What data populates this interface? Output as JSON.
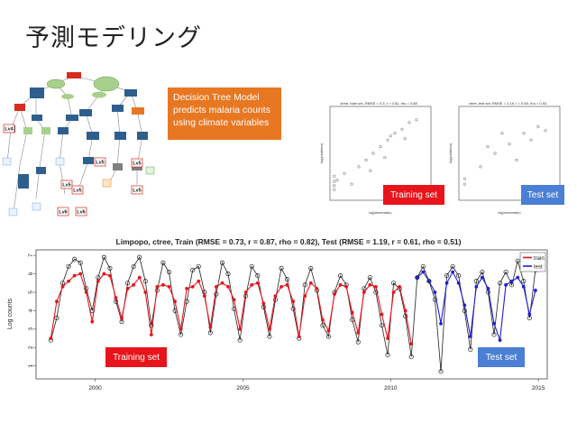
{
  "slide": {
    "title": "予測モデリング",
    "callout_lines": [
      "Decision Tree Model",
      "predicts malaria counts",
      "using climate variables"
    ],
    "scatter_labels": {
      "train_tag": "Training set",
      "test_tag": "Test set"
    },
    "bottom_labels": {
      "train_tag": "Training set",
      "test_tag": "Test set"
    },
    "colors": {
      "callout": "#e87722",
      "train": "#e8141b",
      "test": "#1f1fd6",
      "tag_red": "#e8141b",
      "tag_blue": "#4a7fd3"
    }
  },
  "tree": {
    "nodes": [
      {
        "label": "Lv4",
        "color": "#f2c6c6"
      },
      {
        "label": "Lv5",
        "color": "#f2c6c6"
      },
      {
        "label": "Lv5",
        "color": "#f2c6c6"
      },
      {
        "label": "Lv5",
        "color": "#f2c6c6"
      },
      {
        "label": "Lv6",
        "color": "#f2c6c6"
      },
      {
        "label": "Lv6",
        "color": "#f2c6c6"
      },
      {
        "label": "Lv5",
        "color": "#f2c6c6"
      },
      {
        "label": "Lv5",
        "color": "#f2c6c6"
      }
    ]
  },
  "chart_data": [
    {
      "type": "scatter",
      "title": "ctree, train set, RMSE = 0.3, r = 0.82, rho = 0.88",
      "xlabel": "log(observation)",
      "ylabel": "log(prediction)",
      "xlim": [
        0,
        7
      ],
      "ylim": [
        0,
        7
      ],
      "series": [
        {
          "values": [
            [
              0.5,
              1.5
            ],
            [
              1,
              2
            ],
            [
              1.5,
              1.2
            ],
            [
              2,
              2.5
            ],
            [
              2.5,
              3
            ],
            [
              3,
              3.5
            ],
            [
              3.5,
              4
            ],
            [
              4,
              4.5
            ],
            [
              4.5,
              5
            ],
            [
              5,
              5.3
            ],
            [
              5.5,
              5.8
            ],
            [
              6,
              6
            ],
            [
              0.3,
              0.8
            ],
            [
              0.3,
              1.1
            ],
            [
              0.3,
              1.4
            ],
            [
              0.3,
              1.8
            ],
            [
              3.8,
              3.2
            ],
            [
              4.2,
              4.8
            ],
            [
              5.2,
              4.6
            ],
            [
              2.8,
              2.2
            ]
          ]
        }
      ]
    },
    {
      "type": "scatter",
      "title": "ctree, test set, RMSE = 1.19, r = 0.65, rho = 0.53",
      "xlabel": "log(observation)",
      "ylabel": "log(prediction)",
      "xlim": [
        0,
        7
      ],
      "ylim": [
        0,
        7
      ],
      "series": [
        {
          "values": [
            [
              0.4,
              1.2
            ],
            [
              0.4,
              1.6
            ],
            [
              1.5,
              2.5
            ],
            [
              2.5,
              3.5
            ],
            [
              3.5,
              4.2
            ],
            [
              4.5,
              5
            ],
            [
              5.5,
              5.5
            ],
            [
              6,
              5.2
            ],
            [
              3,
              5
            ],
            [
              2,
              4
            ],
            [
              4,
              3
            ],
            [
              5,
              4.5
            ]
          ]
        }
      ]
    },
    {
      "type": "line",
      "title": "Limpopo, ctree, Train (RMSE = 0.73, r = 0.87, rho = 0.82), Test (RMSE = 1.19, r = 0.61, rho = 0.51)",
      "xlabel": "",
      "ylabel": "Log counts",
      "xlim": [
        1998,
        2015.3
      ],
      "ylim": [
        0.3,
        7.3
      ],
      "x_ticks": [
        "2000",
        "2005",
        "2010",
        "2015"
      ],
      "y_ticks": [
        "1",
        "2",
        "3",
        "4",
        "5",
        "6",
        "7"
      ],
      "legend": {
        "placement": "top-right",
        "entries": [
          "train",
          "test"
        ]
      },
      "series": [
        {
          "name": "observed",
          "color": "#222222",
          "values": [
            [
              1998.5,
              2.4
            ],
            [
              1998.7,
              3.6
            ],
            [
              1998.9,
              5.5
            ],
            [
              1999.1,
              6.4
            ],
            [
              1999.3,
              6.8
            ],
            [
              1999.5,
              6.6
            ],
            [
              1999.7,
              5.2
            ],
            [
              1999.9,
              4.0
            ],
            [
              2000.1,
              5.8
            ],
            [
              2000.3,
              6.9
            ],
            [
              2000.5,
              6.3
            ],
            [
              2000.7,
              4.5
            ],
            [
              2000.9,
              3.4
            ],
            [
              2001.1,
              5.5
            ],
            [
              2001.3,
              6.4
            ],
            [
              2001.5,
              6.9
            ],
            [
              2001.7,
              5.6
            ],
            [
              2001.9,
              3.2
            ],
            [
              2002.1,
              5.1
            ],
            [
              2002.3,
              6.6
            ],
            [
              2002.5,
              6.1
            ],
            [
              2002.7,
              4.0
            ],
            [
              2002.9,
              2.7
            ],
            [
              2003.1,
              4.5
            ],
            [
              2003.3,
              6.2
            ],
            [
              2003.5,
              6.4
            ],
            [
              2003.7,
              5.0
            ],
            [
              2003.9,
              2.8
            ],
            [
              2004.1,
              4.9
            ],
            [
              2004.3,
              6.6
            ],
            [
              2004.5,
              6.0
            ],
            [
              2004.7,
              4.1
            ],
            [
              2004.9,
              2.4
            ],
            [
              2005.1,
              4.8
            ],
            [
              2005.3,
              6.4
            ],
            [
              2005.5,
              5.9
            ],
            [
              2005.7,
              4.2
            ],
            [
              2005.9,
              2.6
            ],
            [
              2006.1,
              4.6
            ],
            [
              2006.3,
              6.3
            ],
            [
              2006.5,
              5.7
            ],
            [
              2006.7,
              4.1
            ],
            [
              2006.9,
              2.5
            ],
            [
              2007.1,
              5.4
            ],
            [
              2007.3,
              6.3
            ],
            [
              2007.5,
              5.1
            ],
            [
              2007.7,
              3.2
            ],
            [
              2007.9,
              2.6
            ],
            [
              2008.1,
              5.0
            ],
            [
              2008.3,
              5.9
            ],
            [
              2008.5,
              5.4
            ],
            [
              2008.7,
              3.5
            ],
            [
              2008.9,
              2.3
            ],
            [
              2009.1,
              5.2
            ],
            [
              2009.3,
              5.8
            ],
            [
              2009.5,
              5.0
            ],
            [
              2009.7,
              3.2
            ],
            [
              2009.9,
              1.6
            ],
            [
              2010.1,
              5.5
            ],
            [
              2010.3,
              5.2
            ],
            [
              2010.5,
              3.7
            ],
            [
              2010.7,
              1.5
            ],
            [
              2010.9,
              5.8
            ],
            [
              2011.1,
              6.4
            ],
            [
              2011.3,
              5.6
            ],
            [
              2011.5,
              4.6
            ],
            [
              2011.7,
              0.7
            ],
            [
              2011.9,
              5.9
            ],
            [
              2012.1,
              6.4
            ],
            [
              2012.3,
              5.9
            ],
            [
              2012.5,
              4.0
            ],
            [
              2012.7,
              1.9
            ],
            [
              2012.9,
              5.6
            ],
            [
              2013.1,
              6.1
            ],
            [
              2013.3,
              5.0
            ],
            [
              2013.5,
              2.7
            ],
            [
              2013.7,
              5.5
            ],
            [
              2013.9,
              6.1
            ],
            [
              2014.1,
              5.4
            ],
            [
              2014.3,
              6.7
            ],
            [
              2014.5,
              5.6
            ],
            [
              2014.7,
              3.6
            ],
            [
              2014.9,
              6.2
            ]
          ]
        },
        {
          "name": "train",
          "color": "#e8141b",
          "values": [
            [
              1998.5,
              2.5
            ],
            [
              1998.7,
              4.5
            ],
            [
              1998.9,
              5.3
            ],
            [
              1999.1,
              5.6
            ],
            [
              1999.3,
              5.9
            ],
            [
              1999.5,
              6.0
            ],
            [
              1999.7,
              5.0
            ],
            [
              1999.9,
              3.4
            ],
            [
              2000.1,
              5.6
            ],
            [
              2000.3,
              6.0
            ],
            [
              2000.5,
              5.9
            ],
            [
              2000.7,
              4.7
            ],
            [
              2000.9,
              3.6
            ],
            [
              2001.1,
              5.2
            ],
            [
              2001.3,
              5.4
            ],
            [
              2001.5,
              5.8
            ],
            [
              2001.7,
              5.0
            ],
            [
              2001.9,
              2.7
            ],
            [
              2002.1,
              5.3
            ],
            [
              2002.3,
              5.4
            ],
            [
              2002.5,
              5.3
            ],
            [
              2002.7,
              4.5
            ],
            [
              2002.9,
              3.0
            ],
            [
              2003.1,
              5.2
            ],
            [
              2003.3,
              5.3
            ],
            [
              2003.5,
              5.6
            ],
            [
              2003.7,
              4.8
            ],
            [
              2003.9,
              3.1
            ],
            [
              2004.1,
              5.3
            ],
            [
              2004.3,
              5.5
            ],
            [
              2004.5,
              5.3
            ],
            [
              2004.7,
              4.6
            ],
            [
              2004.9,
              3.0
            ],
            [
              2005.1,
              5.0
            ],
            [
              2005.3,
              5.4
            ],
            [
              2005.5,
              5.5
            ],
            [
              2005.7,
              4.4
            ],
            [
              2005.9,
              3.0
            ],
            [
              2006.1,
              4.8
            ],
            [
              2006.3,
              5.3
            ],
            [
              2006.5,
              5.4
            ],
            [
              2006.7,
              4.5
            ],
            [
              2006.9,
              2.6
            ],
            [
              2007.1,
              4.8
            ],
            [
              2007.3,
              5.5
            ],
            [
              2007.5,
              5.2
            ],
            [
              2007.7,
              3.5
            ],
            [
              2007.9,
              2.9
            ],
            [
              2008.1,
              4.9
            ],
            [
              2008.3,
              5.4
            ],
            [
              2008.5,
              5.3
            ],
            [
              2008.7,
              3.9
            ],
            [
              2008.9,
              2.8
            ],
            [
              2009.1,
              5.0
            ],
            [
              2009.3,
              5.4
            ],
            [
              2009.5,
              5.3
            ],
            [
              2009.7,
              3.8
            ],
            [
              2009.9,
              2.5
            ],
            [
              2010.1,
              5.0
            ],
            [
              2010.3,
              5.3
            ],
            [
              2010.5,
              4.0
            ],
            [
              2010.7,
              2.2
            ]
          ]
        },
        {
          "name": "test",
          "color": "#1f1fd6",
          "values": [
            [
              2010.9,
              5.8
            ],
            [
              2011.1,
              6.1
            ],
            [
              2011.3,
              5.6
            ],
            [
              2011.5,
              5.0
            ],
            [
              2011.7,
              3.3
            ],
            [
              2011.9,
              5.5
            ],
            [
              2012.1,
              6.1
            ],
            [
              2012.3,
              5.5
            ],
            [
              2012.5,
              4.3
            ],
            [
              2012.7,
              2.6
            ],
            [
              2012.9,
              5.3
            ],
            [
              2013.1,
              5.8
            ],
            [
              2013.3,
              5.2
            ],
            [
              2013.5,
              3.3
            ],
            [
              2013.7,
              2.4
            ],
            [
              2013.9,
              5.4
            ],
            [
              2014.1,
              5.6
            ],
            [
              2014.3,
              5.8
            ],
            [
              2014.5,
              5.3
            ],
            [
              2014.7,
              3.8
            ],
            [
              2014.9,
              5.1
            ]
          ]
        }
      ]
    }
  ]
}
